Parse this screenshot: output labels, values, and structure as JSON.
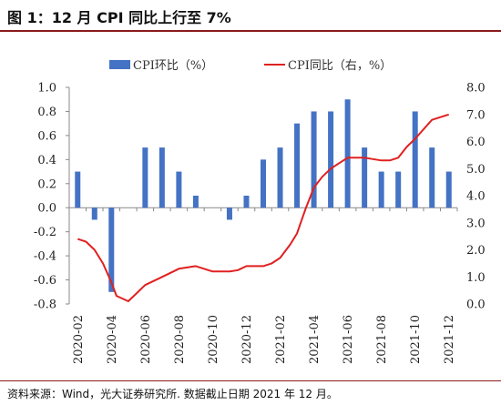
{
  "figure": {
    "title": "图 1：12 月 CPI 同比上行至 7%",
    "source": "资料来源：Wind，光大证券研究所. 数据截止日期 2021 年 12 月。"
  },
  "chart_data": {
    "type": "bar",
    "title": "",
    "xlabel": "",
    "ylabel": "",
    "legend_position": "top",
    "grid": false,
    "categories": [
      "2020-02",
      "2020-03",
      "2020-04",
      "2020-05",
      "2020-06",
      "2020-07",
      "2020-08",
      "2020-09",
      "2020-10",
      "2020-11",
      "2020-12",
      "2021-01",
      "2021-02",
      "2021-03",
      "2021-04",
      "2021-05",
      "2021-06",
      "2021-07",
      "2021-08",
      "2021-09",
      "2021-10",
      "2021-11",
      "2021-12"
    ],
    "x_tick_labels": [
      "2020-02",
      "2020-04",
      "2020-06",
      "2020-08",
      "2020-10",
      "2020-12",
      "2021-02",
      "2021-04",
      "2021-06",
      "2021-08",
      "2021-10",
      "2021-12"
    ],
    "y_left": {
      "range": [
        -0.8,
        1.0
      ],
      "ticks": [
        "1.0",
        "0.8",
        "0.6",
        "0.4",
        "0.2",
        "0.0",
        "-0.2",
        "-0.4",
        "-0.6",
        "-0.8"
      ]
    },
    "y_right": {
      "range": [
        0.0,
        8.0
      ],
      "ticks": [
        "8.0",
        "7.0",
        "6.0",
        "5.0",
        "4.0",
        "3.0",
        "2.0",
        "1.0",
        "0.0"
      ]
    },
    "series": [
      {
        "name": "CPI环比（%）",
        "type": "bar",
        "axis": "left",
        "color": "#4472c4",
        "values": [
          0.3,
          -0.1,
          -0.7,
          null,
          0.5,
          0.5,
          0.3,
          0.1,
          null,
          -0.1,
          0.1,
          0.4,
          0.5,
          0.7,
          0.8,
          0.8,
          0.9,
          0.5,
          0.3,
          0.3,
          0.8,
          0.5,
          0.3
        ]
      },
      {
        "name": "CPI同比（右，%）",
        "type": "line",
        "axis": "right",
        "color": "#e02020",
        "points": [
          [
            0,
            2.4
          ],
          [
            0.5,
            2.3
          ],
          [
            1,
            2.0
          ],
          [
            1.5,
            1.5
          ],
          [
            2,
            0.8
          ],
          [
            2.3,
            0.3
          ],
          [
            3,
            0.1
          ],
          [
            3.5,
            0.4
          ],
          [
            4,
            0.7
          ],
          [
            5,
            1.0
          ],
          [
            6,
            1.3
          ],
          [
            7,
            1.4
          ],
          [
            8,
            1.2
          ],
          [
            9,
            1.2
          ],
          [
            9.5,
            1.25
          ],
          [
            10,
            1.4
          ],
          [
            11,
            1.4
          ],
          [
            11.5,
            1.5
          ],
          [
            12,
            1.7
          ],
          [
            12.6,
            2.2
          ],
          [
            13,
            2.6
          ],
          [
            13.5,
            3.5
          ],
          [
            14,
            4.3
          ],
          [
            14.5,
            4.7
          ],
          [
            15,
            5.0
          ],
          [
            15.5,
            5.2
          ],
          [
            16,
            5.4
          ],
          [
            17,
            5.4
          ],
          [
            18,
            5.3
          ],
          [
            18.5,
            5.3
          ],
          [
            19,
            5.4
          ],
          [
            19.5,
            5.8
          ],
          [
            20,
            6.1
          ],
          [
            21,
            6.8
          ],
          [
            22,
            7.0
          ]
        ]
      }
    ]
  }
}
